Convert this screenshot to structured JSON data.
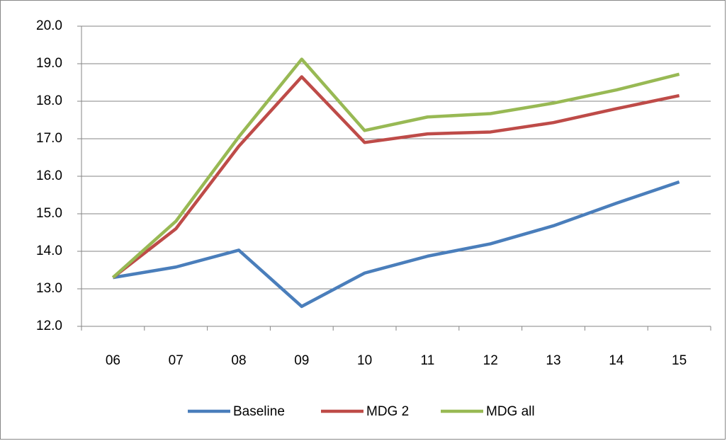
{
  "chart_data": {
    "type": "line",
    "categories": [
      "06",
      "07",
      "08",
      "09",
      "10",
      "11",
      "12",
      "13",
      "14",
      "15"
    ],
    "series": [
      {
        "name": "Baseline",
        "color": "#4a7ebb",
        "values": [
          13.3,
          13.58,
          14.03,
          12.53,
          13.42,
          13.87,
          14.2,
          14.68,
          15.28,
          15.85
        ]
      },
      {
        "name": "MDG 2",
        "color": "#be4b48",
        "values": [
          13.3,
          14.6,
          16.8,
          18.65,
          16.9,
          17.13,
          17.18,
          17.43,
          17.8,
          18.15
        ]
      },
      {
        "name": "MDG all",
        "color": "#98b954",
        "values": [
          13.3,
          14.8,
          17.05,
          19.12,
          17.22,
          17.58,
          17.67,
          17.95,
          18.3,
          18.72
        ]
      }
    ],
    "ylim": [
      12,
      20
    ],
    "yticks": [
      {
        "value": 12,
        "label": "12.0"
      },
      {
        "value": 13,
        "label": "13.0"
      },
      {
        "value": 14,
        "label": "14.0"
      },
      {
        "value": 15,
        "label": "15.0"
      },
      {
        "value": 16,
        "label": "16.0"
      },
      {
        "value": 17,
        "label": "17.0"
      },
      {
        "value": 18,
        "label": "18.0"
      },
      {
        "value": 19,
        "label": "19.0"
      },
      {
        "value": 20,
        "label": "20.0"
      }
    ],
    "grid": true,
    "legend": "bottom"
  }
}
